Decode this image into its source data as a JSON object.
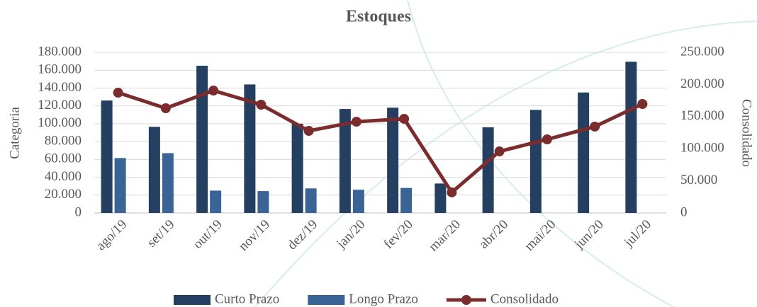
{
  "chart_data": {
    "type": "bar_line",
    "title": "Estoques",
    "y_label": "Categoria",
    "y2_label": "Consolidado",
    "categories": [
      "ago/19",
      "set/19",
      "out/19",
      "nov/19",
      "dez/19",
      "jan/20",
      "fev/20",
      "mar/20",
      "abr/20",
      "mai/20",
      "jun/20",
      "jul/20"
    ],
    "series": [
      {
        "name": "Curto Prazo",
        "color": "#243f60",
        "type": "bar",
        "values": [
          126000,
          96500,
          165000,
          144000,
          100000,
          116500,
          118000,
          33000,
          96000,
          115500,
          135000,
          169500
        ]
      },
      {
        "name": "Longo Prazo",
        "color": "#3a6496",
        "type": "bar",
        "values": [
          61500,
          67000,
          25000,
          24500,
          27500,
          26000,
          28000,
          0,
          0,
          0,
          0,
          0
        ]
      },
      {
        "name": "Consolidado",
        "color": "#7b2c2c",
        "type": "line",
        "axis": "y2",
        "values": [
          187200,
          163000,
          190500,
          168500,
          127750,
          142000,
          146500,
          32000,
          95800,
          114500,
          134400,
          169600
        ]
      }
    ],
    "ylim": [
      0,
      180000
    ],
    "yticks": [
      0,
      {
        "value": 20000,
        "label": "20.000"
      },
      {
        "value": 40000,
        "label": "40.000"
      },
      {
        "value": 60000,
        "label": "60.000"
      },
      {
        "value": 80000,
        "label": "80.000"
      },
      {
        "value": 100000,
        "label": "100.000"
      },
      {
        "value": 120000,
        "label": "120.000"
      },
      {
        "value": 140000,
        "label": "140.000"
      },
      {
        "value": 160000,
        "label": "160.000"
      },
      {
        "value": 180000,
        "label": "180.000"
      }
    ],
    "y2lim": [
      0,
      250000
    ],
    "y2ticks": [
      0,
      {
        "value": 50000,
        "label": "50.000"
      },
      {
        "value": 100000,
        "label": "100.000"
      },
      {
        "value": 150000,
        "label": "150.000"
      },
      {
        "value": 200000,
        "label": "200.000"
      },
      {
        "value": 250000,
        "label": "250.000"
      }
    ],
    "grid": true,
    "legend": "bottom"
  }
}
